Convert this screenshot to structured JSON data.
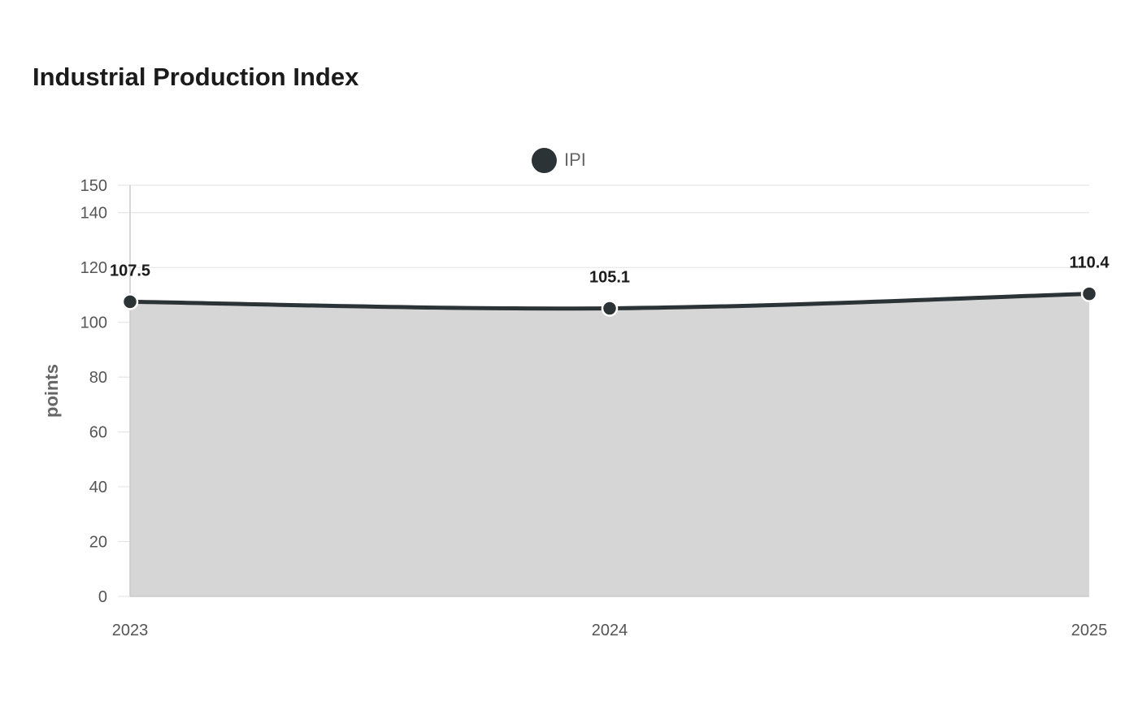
{
  "chart_data": {
    "type": "area",
    "title": "Industrial Production Index",
    "categories": [
      "2023",
      "2024",
      "2025"
    ],
    "series": [
      {
        "name": "IPI",
        "values": [
          107.5,
          105.1,
          110.4
        ],
        "color": "#2c3336",
        "fill": "#d6d6d6"
      }
    ],
    "xlabel": "",
    "ylabel": "points",
    "ylim": [
      0,
      150
    ],
    "yticks": [
      0,
      20,
      40,
      60,
      80,
      100,
      120,
      140,
      150
    ],
    "grid": true,
    "legend": "top-center",
    "data_labels": true
  }
}
